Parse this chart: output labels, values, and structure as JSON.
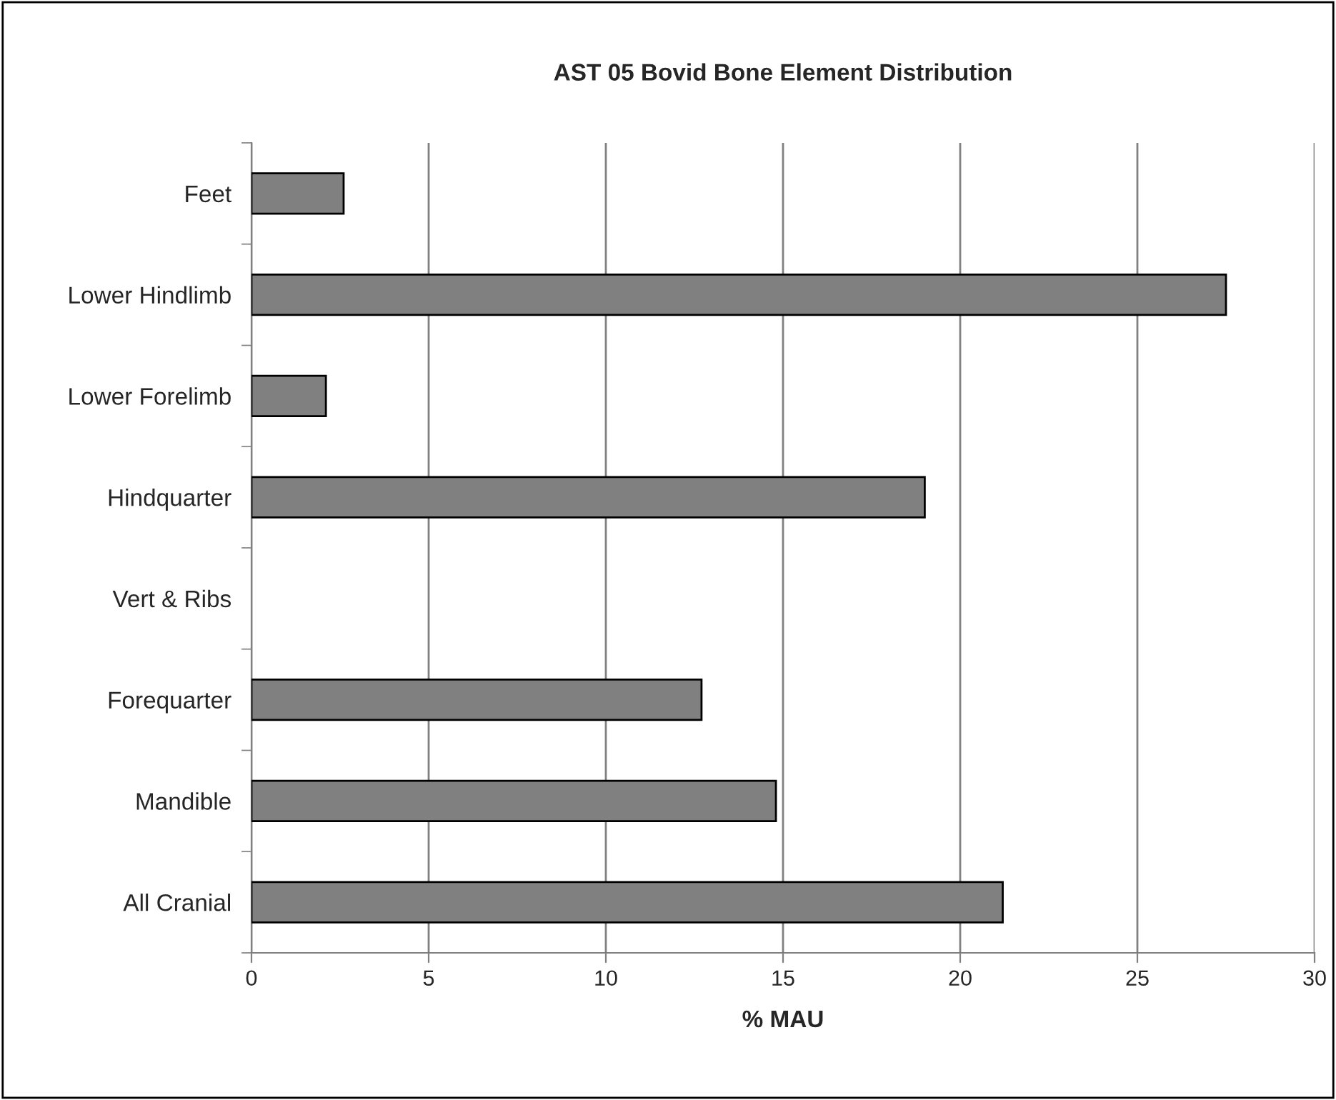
{
  "chart_data": {
    "type": "bar",
    "orientation": "horizontal",
    "title": "AST 05 Bovid Bone Element Distribution",
    "xlabel": "% MAU",
    "categories": [
      "Feet",
      "Lower Hindlimb",
      "Lower Forelimb",
      "Hindquarter",
      "Vert & Ribs",
      "Forequarter",
      "Mandible",
      "All Cranial"
    ],
    "values": [
      2.6,
      27.5,
      2.1,
      19.0,
      0,
      12.7,
      14.8,
      21.2
    ],
    "color": "#808080",
    "xlim": [
      0,
      30
    ],
    "xticks": [
      0,
      5,
      10,
      15,
      20,
      25,
      30
    ],
    "grid": "x",
    "legend": false
  }
}
